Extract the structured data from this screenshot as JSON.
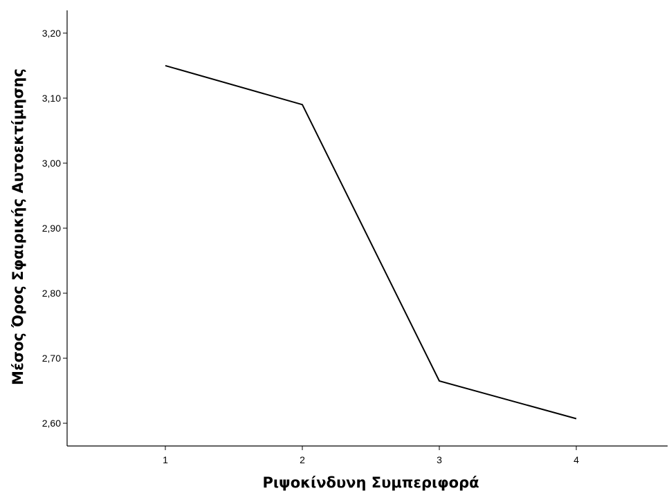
{
  "chart_data": {
    "type": "line",
    "xlabel": "Ριψοκίνδυνη Συμπεριφορά",
    "ylabel": "Μέσος Όρος Σφαιρικής Αυτοεκτίμησης",
    "categories": [
      "1",
      "2",
      "3",
      "4"
    ],
    "series": [
      {
        "values": [
          3.15,
          3.09,
          2.665,
          2.607
        ]
      }
    ],
    "ylim": [
      2.565,
      3.235
    ],
    "yticks": [
      2.6,
      2.7,
      2.8,
      2.9,
      3.0,
      3.1,
      3.2
    ],
    "ytick_labels": [
      "2,60",
      "2,70",
      "2,80",
      "2,90",
      "3,00",
      "3,10",
      "3,20"
    ],
    "grid": false,
    "line_color": "#000000"
  }
}
